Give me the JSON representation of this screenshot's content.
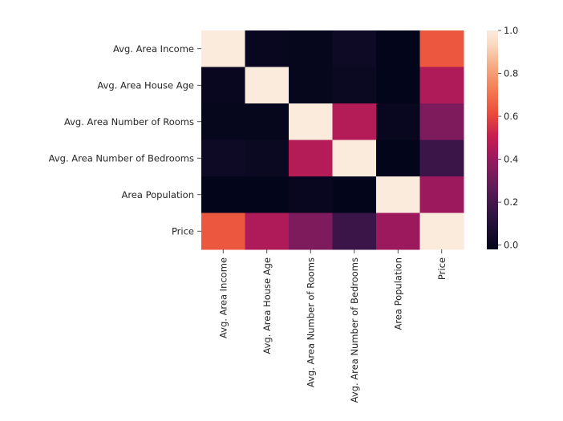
{
  "chart_data": {
    "type": "heatmap",
    "title": "",
    "xlabel": "",
    "ylabel": "",
    "rows": [
      "Avg. Area Income",
      "Avg. Area House Age",
      "Avg. Area Number of Rooms",
      "Avg. Area Number of Bedrooms",
      "Area Population",
      "Price"
    ],
    "columns": [
      "Avg. Area Income",
      "Avg. Area House Age",
      "Avg. Area Number of Rooms",
      "Avg. Area Number of Bedrooms",
      "Area Population",
      "Price"
    ],
    "values": [
      [
        1.0,
        0.0,
        -0.01,
        0.02,
        -0.02,
        0.64
      ],
      [
        0.0,
        1.0,
        -0.01,
        0.01,
        -0.02,
        0.45
      ],
      [
        -0.01,
        -0.01,
        1.0,
        0.46,
        0.0,
        0.34
      ],
      [
        0.02,
        0.01,
        0.46,
        1.0,
        -0.02,
        0.17
      ],
      [
        -0.02,
        -0.02,
        0.0,
        -0.02,
        1.0,
        0.41
      ],
      [
        0.64,
        0.45,
        0.34,
        0.17,
        0.41,
        1.0
      ]
    ],
    "colorbar": {
      "range": [
        -0.02,
        1.0
      ],
      "ticks": [
        0.0,
        0.2,
        0.4,
        0.6,
        0.8,
        1.0
      ],
      "tick_labels": [
        "0.0",
        "0.2",
        "0.4",
        "0.6",
        "0.8",
        "1.0"
      ],
      "colormap": "rocket"
    }
  }
}
